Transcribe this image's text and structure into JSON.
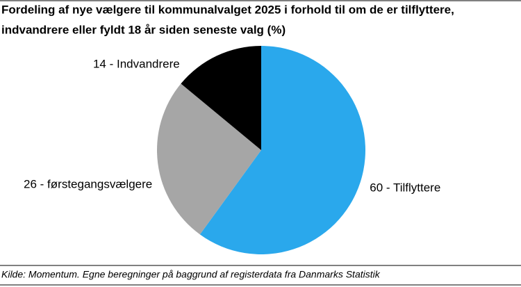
{
  "chart_data": {
    "type": "pie",
    "title": [
      "Fordeling af nye vælgere til kommunalvalget 2025 i forhold til om de er tilflyttere,",
      "indvandrere eller fyldt 18 år siden seneste valg (%)"
    ],
    "categories": [
      "60 - Tilflyttere",
      "26 - førstegangsvælgere",
      "14 - Indvandrere"
    ],
    "values": [
      60,
      26,
      14
    ],
    "colors": [
      "#2aa8ec",
      "#a6a6a6",
      "#000000"
    ],
    "source": "Kilde: Momentum. Egne beregninger på baggrund af registerdata fra Danmarks Statistik"
  }
}
